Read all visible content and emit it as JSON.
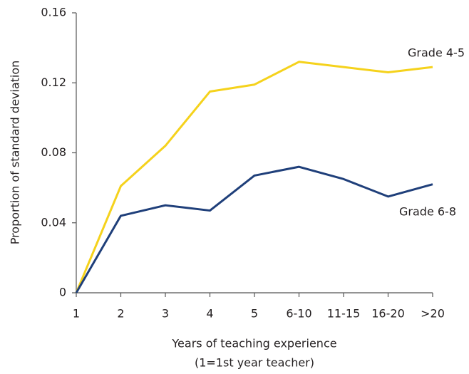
{
  "chart_data": {
    "type": "line",
    "xlabel": [
      "Years of teaching experience",
      "(1=1st year teacher)"
    ],
    "ylabel": "Proportion of standard deviation",
    "categories": [
      "1",
      "2",
      "3",
      "4",
      "5",
      "6-10",
      "11-15",
      "16-20",
      ">20"
    ],
    "series": [
      {
        "name": "Grade 4-5",
        "color": "#f5d21c",
        "values": [
          0,
          0.061,
          0.084,
          0.115,
          0.119,
          0.132,
          0.129,
          0.126,
          0.129
        ]
      },
      {
        "name": "Grade 6-8",
        "color": "#1f3f7a",
        "values": [
          0,
          0.044,
          0.05,
          0.047,
          0.067,
          0.072,
          0.065,
          0.055,
          0.062
        ]
      }
    ],
    "ylim": [
      0,
      0.16
    ],
    "yticks": [
      0,
      0.04,
      0.08,
      0.12,
      0.16
    ],
    "grid": false
  }
}
